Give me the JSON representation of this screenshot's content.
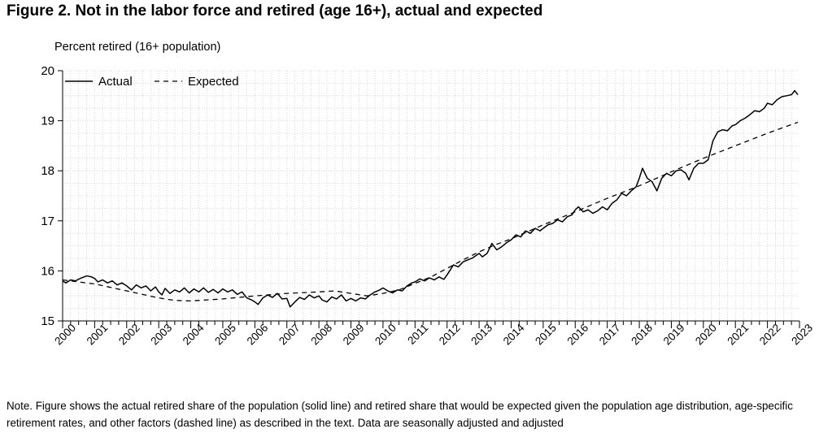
{
  "figure": {
    "title": "Figure 2.  Not in the labor force and retired (age 16+), actual and expected",
    "note": "Note. Figure shows the actual retired share of the population (solid line) and retired share that would be expected given the population age distribution, age-specific retirement rates, and other factors (dashed line) as described in the text.  Data are seasonally adjusted and adjusted"
  },
  "chart_data": {
    "type": "line",
    "title": "Figure 2.  Not in the labor force and retired (age 16+), actual and expected",
    "xlabel": "",
    "ylabel": "Percent retired (16+ population)",
    "xlim": [
      2000,
      2023
    ],
    "ylim": [
      15,
      20
    ],
    "x_ticks": [
      "2000",
      "2001",
      "2002",
      "2003",
      "2004",
      "2005",
      "2006",
      "2007",
      "2008",
      "2009",
      "2010",
      "2011",
      "2012",
      "2013",
      "2014",
      "2015",
      "2016",
      "2017",
      "2018",
      "2019",
      "2020",
      "2021",
      "2022",
      "2023"
    ],
    "y_ticks": [
      "15",
      "16",
      "17",
      "18",
      "19",
      "20"
    ],
    "grid": true,
    "legend_position": "top-left",
    "series": [
      {
        "name": "Actual",
        "style": "solid",
        "color": "#000000",
        "points": [
          [
            2000.0,
            15.8
          ],
          [
            2000.1,
            15.76
          ],
          [
            2000.25,
            15.82
          ],
          [
            2000.4,
            15.8
          ],
          [
            2000.55,
            15.85
          ],
          [
            2000.75,
            15.9
          ],
          [
            2000.9,
            15.88
          ],
          [
            2001.0,
            15.85
          ],
          [
            2001.1,
            15.78
          ],
          [
            2001.25,
            15.82
          ],
          [
            2001.4,
            15.76
          ],
          [
            2001.55,
            15.8
          ],
          [
            2001.7,
            15.72
          ],
          [
            2001.85,
            15.76
          ],
          [
            2002.0,
            15.7
          ],
          [
            2002.15,
            15.62
          ],
          [
            2002.3,
            15.72
          ],
          [
            2002.45,
            15.66
          ],
          [
            2002.6,
            15.7
          ],
          [
            2002.75,
            15.6
          ],
          [
            2002.9,
            15.68
          ],
          [
            2003.0,
            15.58
          ],
          [
            2003.1,
            15.52
          ],
          [
            2003.2,
            15.65
          ],
          [
            2003.35,
            15.55
          ],
          [
            2003.5,
            15.62
          ],
          [
            2003.65,
            15.58
          ],
          [
            2003.8,
            15.66
          ],
          [
            2003.95,
            15.56
          ],
          [
            2004.1,
            15.64
          ],
          [
            2004.25,
            15.58
          ],
          [
            2004.4,
            15.66
          ],
          [
            2004.55,
            15.57
          ],
          [
            2004.7,
            15.63
          ],
          [
            2004.85,
            15.56
          ],
          [
            2005.0,
            15.64
          ],
          [
            2005.15,
            15.58
          ],
          [
            2005.3,
            15.62
          ],
          [
            2005.45,
            15.53
          ],
          [
            2005.6,
            15.58
          ],
          [
            2005.75,
            15.46
          ],
          [
            2005.9,
            15.42
          ],
          [
            2006.0,
            15.38
          ],
          [
            2006.1,
            15.33
          ],
          [
            2006.25,
            15.46
          ],
          [
            2006.4,
            15.52
          ],
          [
            2006.55,
            15.47
          ],
          [
            2006.7,
            15.55
          ],
          [
            2006.85,
            15.44
          ],
          [
            2007.0,
            15.45
          ],
          [
            2007.1,
            15.28
          ],
          [
            2007.25,
            15.38
          ],
          [
            2007.4,
            15.47
          ],
          [
            2007.55,
            15.43
          ],
          [
            2007.7,
            15.52
          ],
          [
            2007.85,
            15.46
          ],
          [
            2008.0,
            15.5
          ],
          [
            2008.1,
            15.42
          ],
          [
            2008.25,
            15.38
          ],
          [
            2008.4,
            15.48
          ],
          [
            2008.55,
            15.44
          ],
          [
            2008.7,
            15.52
          ],
          [
            2008.85,
            15.4
          ],
          [
            2009.0,
            15.45
          ],
          [
            2009.15,
            15.4
          ],
          [
            2009.3,
            15.46
          ],
          [
            2009.45,
            15.44
          ],
          [
            2009.6,
            15.52
          ],
          [
            2009.75,
            15.58
          ],
          [
            2009.9,
            15.62
          ],
          [
            2010.0,
            15.66
          ],
          [
            2010.15,
            15.6
          ],
          [
            2010.3,
            15.56
          ],
          [
            2010.45,
            15.62
          ],
          [
            2010.6,
            15.6
          ],
          [
            2010.75,
            15.7
          ],
          [
            2010.9,
            15.76
          ],
          [
            2011.0,
            15.78
          ],
          [
            2011.15,
            15.84
          ],
          [
            2011.3,
            15.8
          ],
          [
            2011.45,
            15.86
          ],
          [
            2011.6,
            15.82
          ],
          [
            2011.75,
            15.88
          ],
          [
            2011.9,
            15.83
          ],
          [
            2012.0,
            15.92
          ],
          [
            2012.1,
            16.02
          ],
          [
            2012.2,
            16.12
          ],
          [
            2012.35,
            16.08
          ],
          [
            2012.5,
            16.18
          ],
          [
            2012.65,
            16.22
          ],
          [
            2012.8,
            16.26
          ],
          [
            2013.0,
            16.35
          ],
          [
            2013.1,
            16.28
          ],
          [
            2013.25,
            16.35
          ],
          [
            2013.4,
            16.55
          ],
          [
            2013.55,
            16.42
          ],
          [
            2013.7,
            16.48
          ],
          [
            2013.85,
            16.56
          ],
          [
            2014.0,
            16.62
          ],
          [
            2014.15,
            16.72
          ],
          [
            2014.3,
            16.68
          ],
          [
            2014.45,
            16.8
          ],
          [
            2014.6,
            16.75
          ],
          [
            2014.75,
            16.85
          ],
          [
            2014.9,
            16.8
          ],
          [
            2015.0,
            16.85
          ],
          [
            2015.15,
            16.92
          ],
          [
            2015.3,
            16.95
          ],
          [
            2015.45,
            17.02
          ],
          [
            2015.6,
            16.98
          ],
          [
            2015.75,
            17.08
          ],
          [
            2015.9,
            17.12
          ],
          [
            2016.0,
            17.22
          ],
          [
            2016.1,
            17.28
          ],
          [
            2016.25,
            17.18
          ],
          [
            2016.4,
            17.22
          ],
          [
            2016.55,
            17.15
          ],
          [
            2016.7,
            17.2
          ],
          [
            2016.85,
            17.28
          ],
          [
            2017.0,
            17.22
          ],
          [
            2017.15,
            17.35
          ],
          [
            2017.3,
            17.42
          ],
          [
            2017.45,
            17.55
          ],
          [
            2017.6,
            17.5
          ],
          [
            2017.75,
            17.6
          ],
          [
            2017.9,
            17.68
          ],
          [
            2018.0,
            17.85
          ],
          [
            2018.1,
            18.05
          ],
          [
            2018.25,
            17.85
          ],
          [
            2018.4,
            17.78
          ],
          [
            2018.55,
            17.6
          ],
          [
            2018.7,
            17.85
          ],
          [
            2018.85,
            17.95
          ],
          [
            2019.0,
            17.9
          ],
          [
            2019.15,
            18.0
          ],
          [
            2019.3,
            18.02
          ],
          [
            2019.45,
            17.95
          ],
          [
            2019.55,
            17.82
          ],
          [
            2019.7,
            18.05
          ],
          [
            2019.85,
            18.15
          ],
          [
            2020.0,
            18.15
          ],
          [
            2020.15,
            18.22
          ],
          [
            2020.3,
            18.6
          ],
          [
            2020.45,
            18.78
          ],
          [
            2020.6,
            18.82
          ],
          [
            2020.75,
            18.8
          ],
          [
            2020.9,
            18.9
          ],
          [
            2021.0,
            18.92
          ],
          [
            2021.15,
            19.0
          ],
          [
            2021.3,
            19.05
          ],
          [
            2021.45,
            19.12
          ],
          [
            2021.6,
            19.2
          ],
          [
            2021.75,
            19.18
          ],
          [
            2021.9,
            19.25
          ],
          [
            2022.0,
            19.35
          ],
          [
            2022.15,
            19.32
          ],
          [
            2022.3,
            19.42
          ],
          [
            2022.45,
            19.48
          ],
          [
            2022.6,
            19.5
          ],
          [
            2022.75,
            19.52
          ],
          [
            2022.85,
            19.6
          ],
          [
            2022.95,
            19.52
          ]
        ]
      },
      {
        "name": "Expected",
        "style": "dashed",
        "color": "#000000",
        "points": [
          [
            2000.0,
            15.82
          ],
          [
            2001.0,
            15.74
          ],
          [
            2002.0,
            15.6
          ],
          [
            2003.0,
            15.46
          ],
          [
            2003.5,
            15.41
          ],
          [
            2004.0,
            15.4
          ],
          [
            2005.0,
            15.44
          ],
          [
            2006.0,
            15.5
          ],
          [
            2007.0,
            15.55
          ],
          [
            2008.0,
            15.58
          ],
          [
            2008.5,
            15.6
          ],
          [
            2009.0,
            15.55
          ],
          [
            2009.5,
            15.5
          ],
          [
            2010.0,
            15.55
          ],
          [
            2010.5,
            15.62
          ],
          [
            2011.0,
            15.75
          ],
          [
            2011.5,
            15.88
          ],
          [
            2012.0,
            16.05
          ],
          [
            2012.5,
            16.22
          ],
          [
            2013.0,
            16.38
          ],
          [
            2013.5,
            16.52
          ],
          [
            2014.0,
            16.64
          ],
          [
            2015.0,
            16.92
          ],
          [
            2016.0,
            17.18
          ],
          [
            2017.0,
            17.45
          ],
          [
            2018.0,
            17.7
          ],
          [
            2019.0,
            17.98
          ],
          [
            2020.0,
            18.25
          ],
          [
            2021.0,
            18.5
          ],
          [
            2022.0,
            18.75
          ],
          [
            2022.95,
            18.97
          ]
        ]
      }
    ]
  }
}
